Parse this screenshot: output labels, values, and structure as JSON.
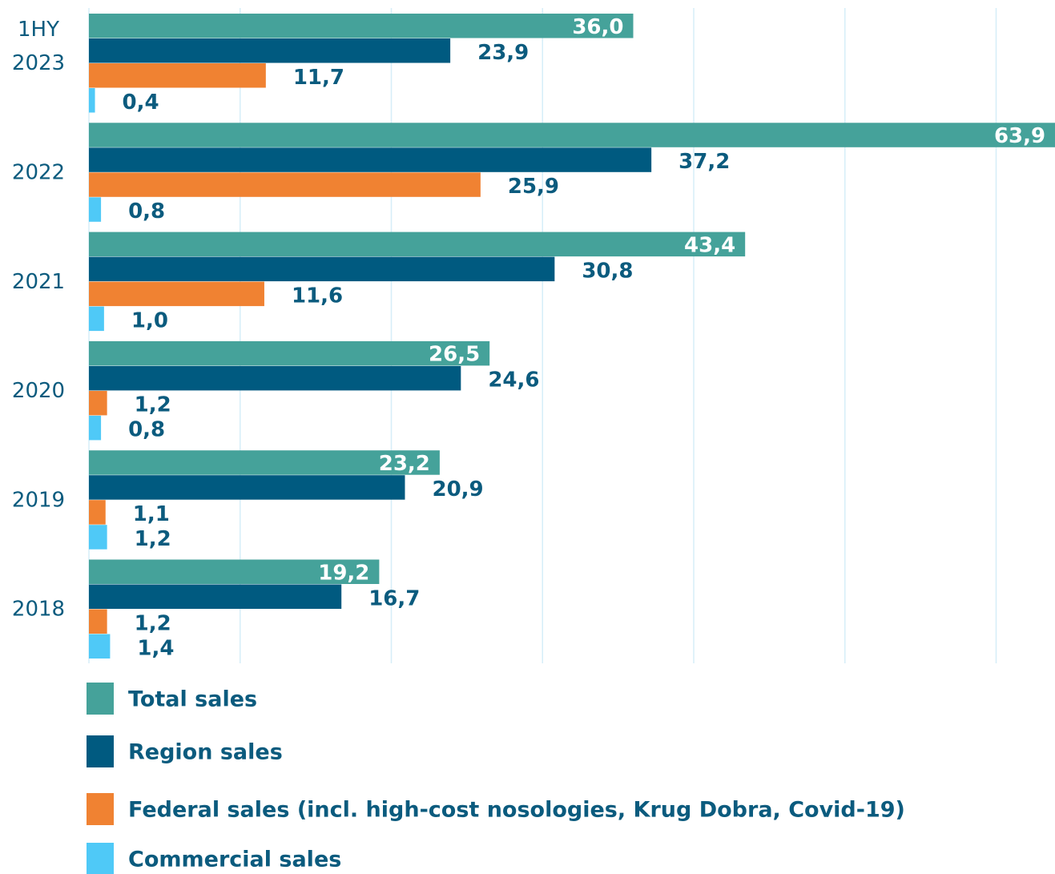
{
  "chart_data": {
    "type": "hbar",
    "categories": [
      "1HY 2023",
      "2022",
      "2021",
      "2020",
      "2019",
      "2018"
    ],
    "series": [
      {
        "name": "Total sales",
        "color": "#45a29a",
        "values": [
          36.0,
          63.9,
          43.4,
          26.5,
          23.2,
          19.2
        ],
        "value_labels": [
          "36,0",
          "63,9",
          "43,4",
          "26,5",
          "23,2",
          "19,2"
        ]
      },
      {
        "name": "Region sales",
        "color": "#005a80",
        "values": [
          23.9,
          37.2,
          30.8,
          24.6,
          20.9,
          16.7
        ],
        "value_labels": [
          "23,9",
          "37,2",
          "30,8",
          "24,6",
          "20,9",
          "16,7"
        ]
      },
      {
        "name": "Federal sales (incl. high-cost nosologies, Krug Dobra, Covid-19)",
        "color": "#f08232",
        "values": [
          11.7,
          25.9,
          11.6,
          1.2,
          1.1,
          1.2
        ],
        "value_labels": [
          "11,7",
          "25,9",
          "11,6",
          "1,2",
          "1,1",
          "1,2"
        ]
      },
      {
        "name": "Commercial sales",
        "color": "#4fc9f7",
        "values": [
          0.4,
          0.8,
          1.0,
          0.8,
          1.2,
          1.4
        ],
        "value_labels": [
          "0,4",
          "0,8",
          "1,0",
          "0,8",
          "1,2",
          "1,4"
        ]
      }
    ],
    "xlim": [
      0,
      64
    ],
    "xticks": [
      0,
      10,
      20,
      30,
      40,
      50,
      60
    ],
    "grid": true
  }
}
